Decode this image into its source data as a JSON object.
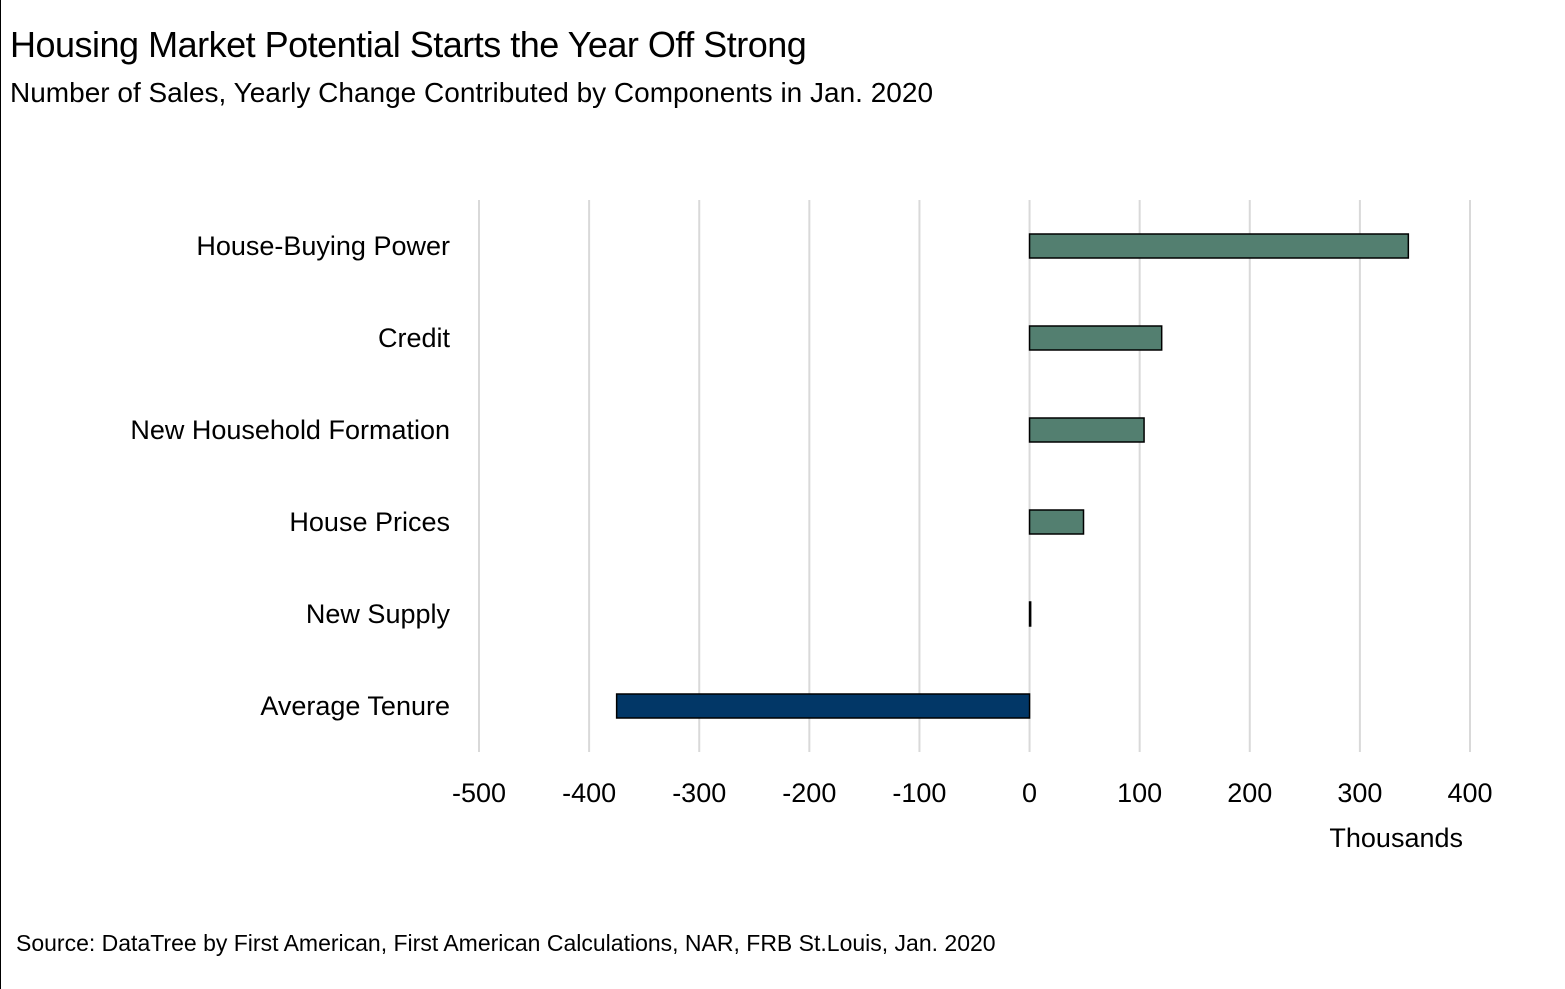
{
  "title": "Housing Market Potential Starts the Year Off Strong",
  "subtitle": "Number of Sales, Yearly Change Contributed by Components in Jan. 2020",
  "source": "Source: DataTree by First American, First American Calculations, NAR, FRB St.Louis, Jan. 2020",
  "chart_data": {
    "type": "bar",
    "orientation": "horizontal",
    "categories": [
      "House-Buying Power",
      "Credit",
      "New Household Formation",
      "House Prices",
      "New Supply",
      "Average Tenure"
    ],
    "values": [
      344,
      120,
      104,
      49,
      1,
      -375
    ],
    "xlim": [
      -500,
      400
    ],
    "xticks": [
      -500,
      -400,
      -300,
      -200,
      -100,
      0,
      100,
      200,
      300,
      400
    ],
    "xlabel": "Thousands",
    "ylabel": "",
    "grid": "vertical",
    "legend": "none",
    "colors": {
      "positive": "#537F70",
      "negative": "#023767",
      "outline": "#000000",
      "grid": "#D9D9D9"
    }
  }
}
